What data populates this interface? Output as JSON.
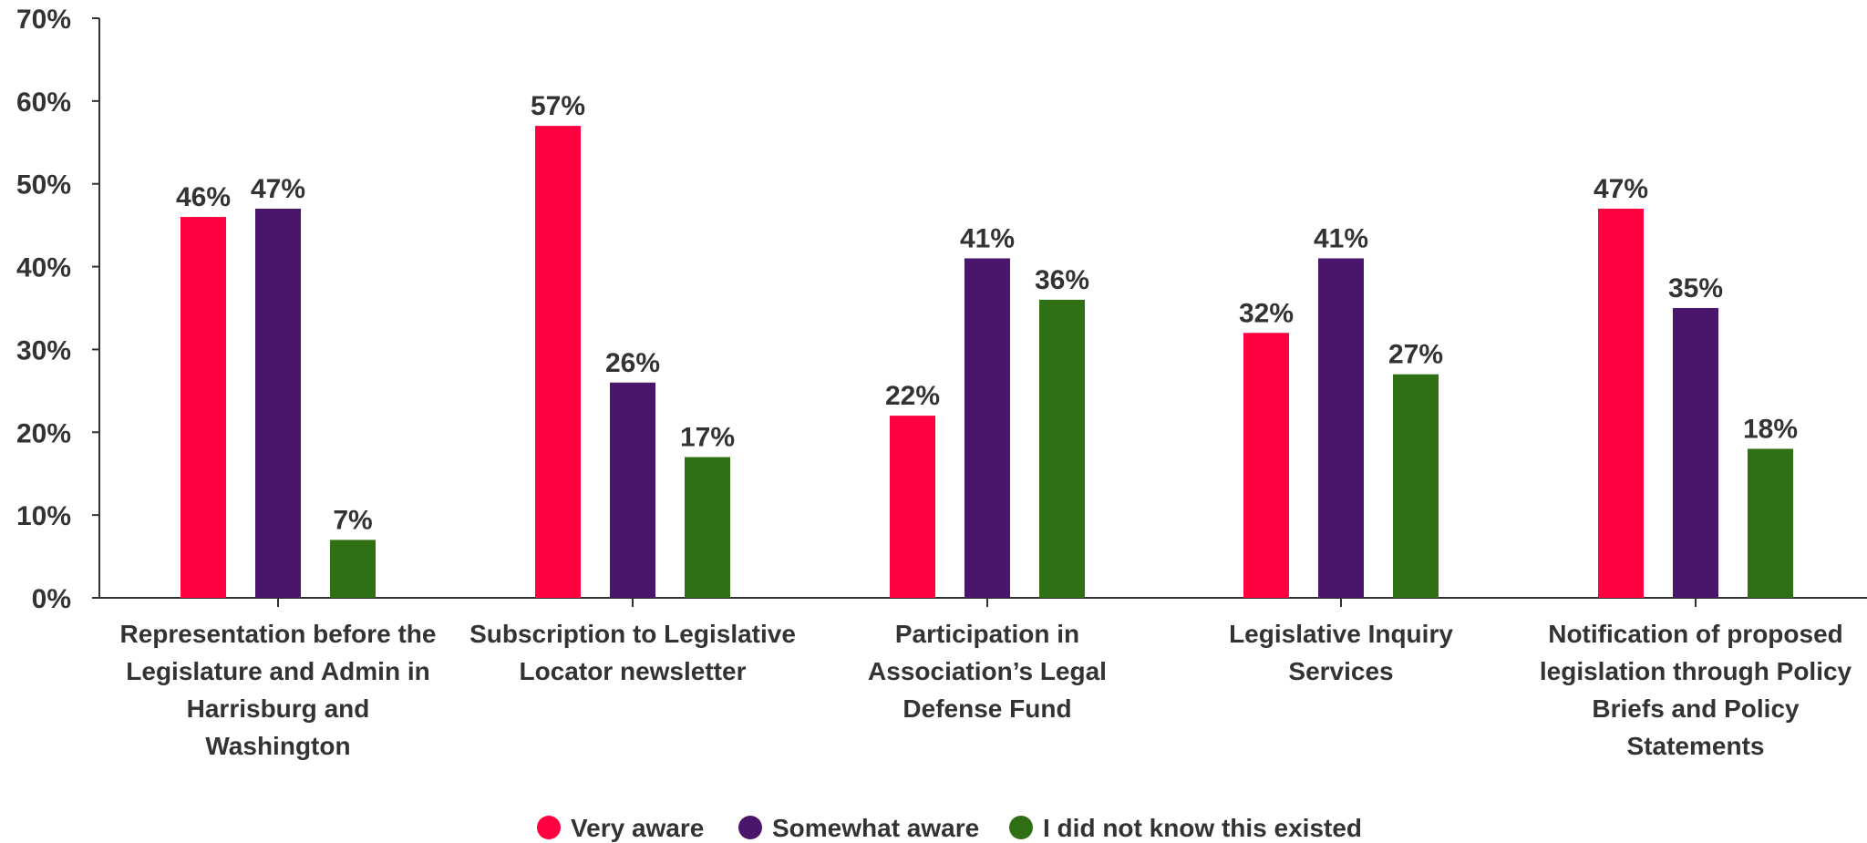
{
  "chart_data": {
    "type": "bar",
    "title": "",
    "xlabel": "",
    "ylabel": "",
    "ylim": [
      0,
      70
    ],
    "yticks": [
      0,
      10,
      20,
      30,
      40,
      50,
      60,
      70
    ],
    "ytick_labels": [
      "0%",
      "10%",
      "20%",
      "30%",
      "40%",
      "50%",
      "60%",
      "70%"
    ],
    "grid": false,
    "legend_position": "bottom",
    "categories": [
      [
        "Representation before the",
        "Legislature and Admin in",
        "Harrisburg and",
        "Washington"
      ],
      [
        "Subscription to Legislative",
        "Locator newsletter"
      ],
      [
        "Participation in",
        "Association’s Legal",
        "Defense Fund"
      ],
      [
        "Legislative Inquiry",
        "Services"
      ],
      [
        "Notification of proposed",
        "legislation through Policy",
        "Briefs and Policy",
        "Statements"
      ]
    ],
    "series": [
      {
        "name": "Very aware",
        "color": "#ff0040",
        "values": [
          46,
          57,
          22,
          32,
          47
        ],
        "labels": [
          "46%",
          "57%",
          "22%",
          "32%",
          "47%"
        ]
      },
      {
        "name": "Somewhat aware",
        "color": "#4a166b",
        "values": [
          47,
          26,
          41,
          41,
          35
        ],
        "labels": [
          "47%",
          "26%",
          "41%",
          "41%",
          "35%"
        ]
      },
      {
        "name": "I did not know this existed",
        "color": "#2f7014",
        "values": [
          7,
          17,
          36,
          27,
          18
        ],
        "labels": [
          "7%",
          "17%",
          "36%",
          "27%",
          "18%"
        ]
      }
    ]
  }
}
